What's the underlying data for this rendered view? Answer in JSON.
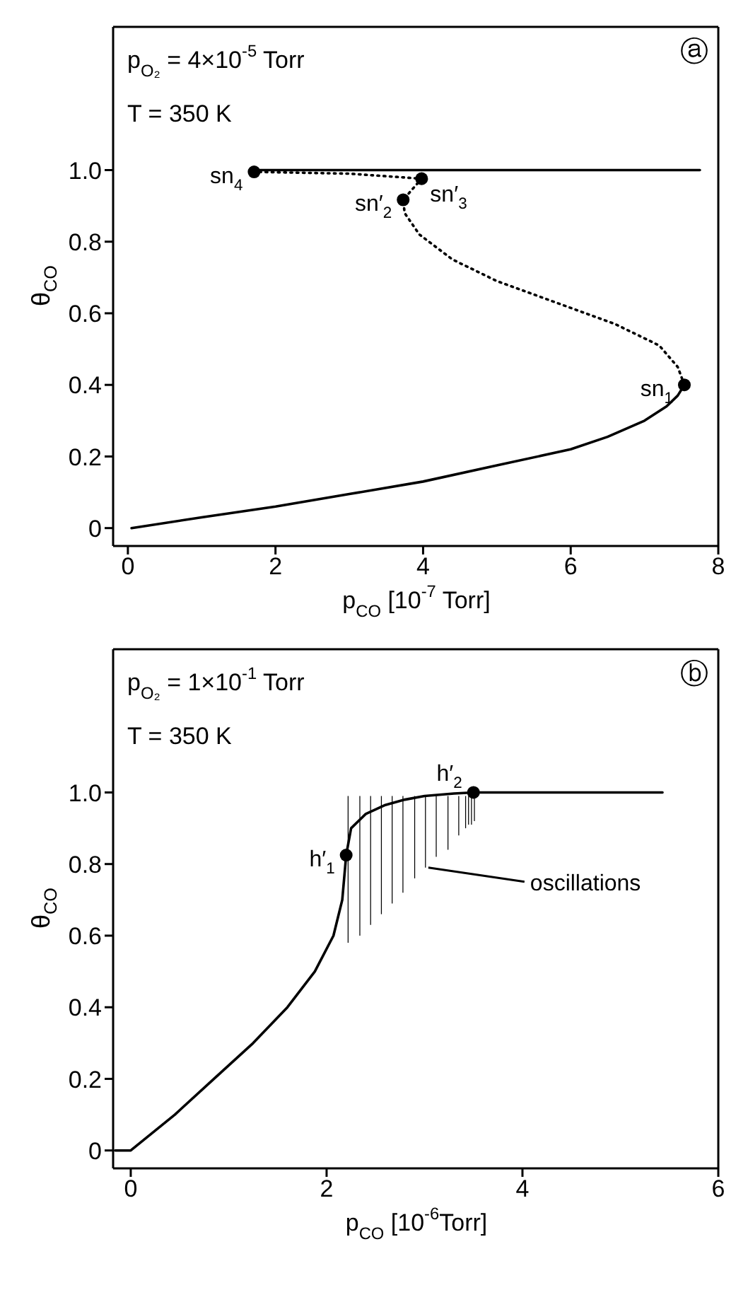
{
  "chart_data": [
    {
      "type": "line",
      "title": "ⓐ",
      "xlabel": "p$_{CO}$ [10$^{-7}$ Torr]",
      "ylabel": "θ$_{CO}$",
      "annotations": [
        "p$_{O₂}$ = 4×10$^{-5}$ Torr",
        "T = 350 K",
        {
          "text": "sn$_{1}$",
          "x": 7.54,
          "y": 0.4
        },
        {
          "text": "sn′$_{2}$",
          "x": 3.73,
          "y": 0.917
        },
        {
          "text": "sn′$_{3}$",
          "x": 3.98,
          "y": 0.976
        },
        {
          "text": "sn$_{4}$",
          "x": 1.71,
          "y": 0.995
        }
      ],
      "xlim": [
        -0.2,
        8
      ],
      "xticks": [
        0,
        2,
        4,
        6,
        8
      ],
      "ylim": [
        -0.05,
        1.4
      ],
      "yticks": [
        0,
        {
          "value": 0.2,
          "label": "0.2"
        },
        {
          "value": 0.4,
          "label": "0.4"
        },
        {
          "value": 0.6,
          "label": "0.6"
        },
        {
          "value": 0.8,
          "label": "0.8"
        },
        {
          "value": 1,
          "label": "1.0"
        }
      ],
      "series": [
        {
          "line_style": "solid",
          "color": "#000000",
          "x": [
            0.05,
            1,
            2,
            3,
            4,
            5,
            6,
            6.5,
            7,
            7.3,
            7.45,
            7.54
          ],
          "values": [
            0,
            0.03,
            0.06,
            0.095,
            0.13,
            0.175,
            0.22,
            0.255,
            0.3,
            0.34,
            0.37,
            0.4
          ]
        },
        {
          "line_style": "dotted",
          "color": "#000000",
          "x": [
            7.54,
            7.45,
            7.2,
            6.6,
            5.8,
            5,
            4.4,
            3.95,
            3.75,
            3.73,
            3.98,
            3,
            1.71
          ],
          "values": [
            0.4,
            0.45,
            0.51,
            0.57,
            0.63,
            0.69,
            0.75,
            0.82,
            0.88,
            0.917,
            0.976,
            0.99,
            0.995
          ]
        },
        {
          "line_style": "solid",
          "color": "#000000",
          "x": [
            1.71,
            7.75
          ],
          "values": [
            1,
            1
          ]
        },
        {
          "type": "scatter",
          "marker": "circle",
          "color": "#000000",
          "x": [
            7.54,
            3.73,
            3.98,
            1.71
          ],
          "values": [
            0.4,
            0.917,
            0.976,
            0.995
          ]
        }
      ]
    },
    {
      "type": "line",
      "title": "ⓑ",
      "xlabel": "p$_{CO}$ [10$^{-6}$Torr]",
      "ylabel": "θ$_{CO}$",
      "annotations": [
        "p$_{O₂}$ = 1×10$^{-1}$ Torr",
        "T = 350 K",
        {
          "text": "h′$_{1}$",
          "x": 2.2,
          "y": 0.825
        },
        {
          "text": "h′$_{2}$",
          "x": 3.5,
          "y": 1
        },
        {
          "text": "oscillations",
          "x": 3.01,
          "y": 0.79
        }
      ],
      "xlim": [
        -0.18,
        6
      ],
      "xticks": [
        0,
        2,
        4,
        6
      ],
      "ylim": [
        -0.05,
        1.4
      ],
      "yticks": [
        0,
        {
          "value": 0.2,
          "label": "0.2"
        },
        {
          "value": 0.4,
          "label": "0.4"
        },
        {
          "value": 0.6,
          "label": "0.6"
        },
        {
          "value": 0.8,
          "label": "0.8"
        },
        {
          "value": 1,
          "label": "1.0"
        }
      ],
      "series": [
        {
          "type": "bar",
          "color": "#000000",
          "x": [
            2.22,
            2.34,
            2.45,
            2.56,
            2.67,
            2.78,
            2.9,
            3.01,
            3.12,
            3.24,
            3.35,
            3.42,
            3.45,
            3.48,
            3.51
          ],
          "base": [
            0.58,
            0.6,
            0.63,
            0.66,
            0.69,
            0.72,
            0.76,
            0.79,
            0.82,
            0.84,
            0.88,
            0.9,
            0.91,
            0.91,
            0.92
          ],
          "values": [
            0.41,
            0.39,
            0.36,
            0.33,
            0.3,
            0.27,
            0.23,
            0.2,
            0.17,
            0.15,
            0.11,
            0.09,
            0.08,
            0.08,
            0.07
          ]
        },
        {
          "line_style": "solid",
          "color": "#000000",
          "x": [
            -0.16,
            0,
            0.45,
            0.85,
            1.25,
            1.6,
            1.88,
            2.07,
            2.16,
            2.2,
            2.25,
            2.4,
            2.6,
            2.8,
            3,
            3.3,
            3.5,
            5.43
          ],
          "values": [
            0,
            0,
            0.1,
            0.2,
            0.3,
            0.4,
            0.5,
            0.6,
            0.7,
            0.825,
            0.9,
            0.94,
            0.965,
            0.98,
            0.99,
            0.997,
            1,
            1
          ]
        },
        {
          "type": "scatter",
          "marker": "circle",
          "color": "#000000",
          "x": [
            2.2,
            3.5
          ],
          "values": [
            0.825,
            1
          ]
        }
      ]
    }
  ]
}
